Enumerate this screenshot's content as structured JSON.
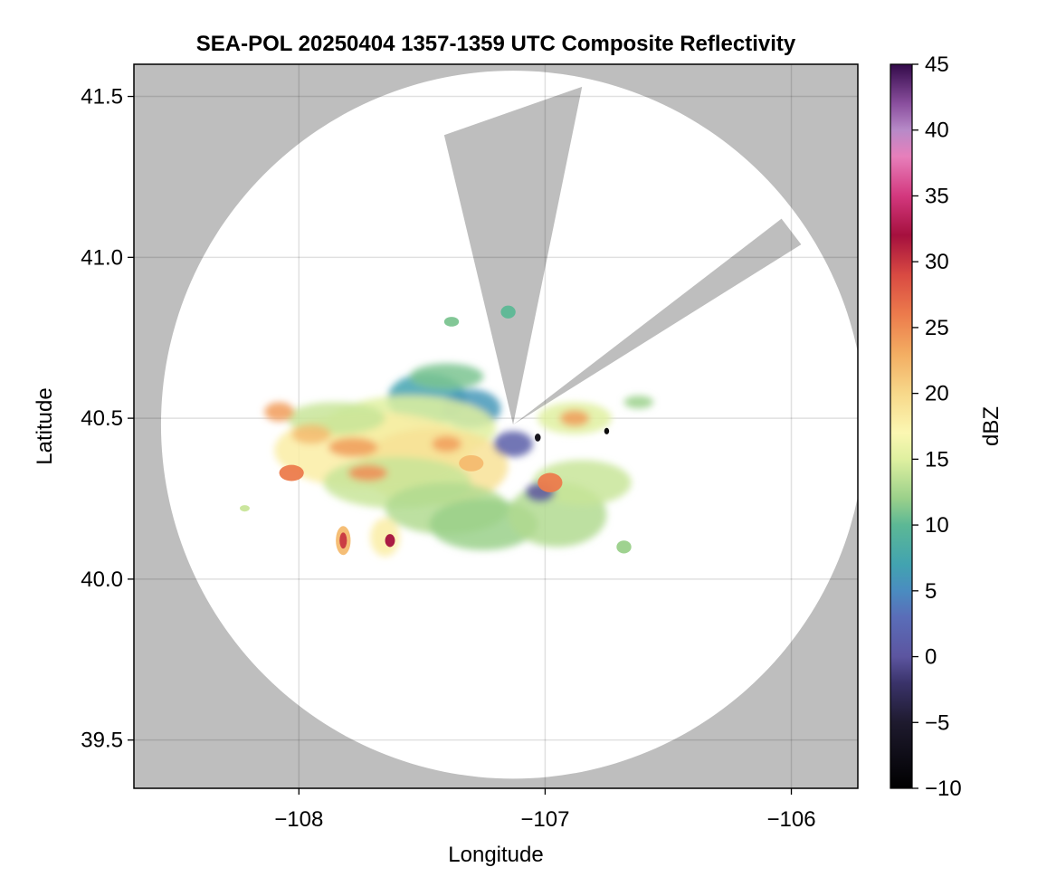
{
  "chart_data": {
    "type": "heatmap",
    "title": "SEA-POL 20250404 1357-1359 UTC Composite Reflectivity",
    "xlabel": "Longitude",
    "ylabel": "Latitude",
    "xlim": [
      -108.67,
      -105.73
    ],
    "ylim": [
      39.35,
      41.6
    ],
    "x_ticks": [
      -108,
      -107,
      -106
    ],
    "x_tick_labels": [
      "−108",
      "−107",
      "−106"
    ],
    "y_ticks": [
      39.5,
      40.0,
      40.5,
      41.0,
      41.5
    ],
    "y_tick_labels": [
      "39.5",
      "40.0",
      "40.5",
      "41.0",
      "41.5"
    ],
    "grid": true,
    "background_color": "#bebebe",
    "coverage_color": "#ffffff",
    "radar_site": {
      "lon": -107.13,
      "lat": 40.48
    },
    "radar_range_deg": {
      "lon": 1.43,
      "lat": 1.1
    },
    "blocked_sectors": [
      {
        "lon_a": -106.85,
        "lat_a": 41.53,
        "lon_b": -107.41,
        "lat_b": 41.38
      },
      {
        "lon_a": -106.04,
        "lat_a": 41.12,
        "lon_b": -105.96,
        "lat_b": 41.04
      }
    ],
    "colorbar": {
      "label": "dBZ",
      "min": -10,
      "max": 45,
      "ticks": [
        -10,
        -5,
        0,
        5,
        10,
        15,
        20,
        25,
        30,
        35,
        40,
        45
      ],
      "tick_labels": [
        "−10",
        "−5",
        "0",
        "5",
        "10",
        "15",
        "20",
        "25",
        "30",
        "35",
        "40",
        "45"
      ],
      "colormap_stops": [
        {
          "value": -10,
          "color": "#000000"
        },
        {
          "value": -5,
          "color": "#1e1a2e"
        },
        {
          "value": -2,
          "color": "#3a336a"
        },
        {
          "value": 0,
          "color": "#5c55a0"
        },
        {
          "value": 3,
          "color": "#5a6db8"
        },
        {
          "value": 5,
          "color": "#4a8cc0"
        },
        {
          "value": 7,
          "color": "#42a3b0"
        },
        {
          "value": 10,
          "color": "#5cb895"
        },
        {
          "value": 12,
          "color": "#9ad08a"
        },
        {
          "value": 15,
          "color": "#dff0a0"
        },
        {
          "value": 17,
          "color": "#fbf7b2"
        },
        {
          "value": 20,
          "color": "#f7d88a"
        },
        {
          "value": 23,
          "color": "#f3ad62"
        },
        {
          "value": 26,
          "color": "#ec7b4c"
        },
        {
          "value": 29,
          "color": "#d94a42"
        },
        {
          "value": 32,
          "color": "#a5103e"
        },
        {
          "value": 35,
          "color": "#d3387e"
        },
        {
          "value": 38,
          "color": "#e77fbb"
        },
        {
          "value": 40,
          "color": "#b78ac8"
        },
        {
          "value": 42,
          "color": "#8a4f9e"
        },
        {
          "value": 45,
          "color": "#330a4a"
        }
      ]
    },
    "echo_cells": [
      {
        "lon": -107.48,
        "lat": 40.56,
        "dlon": 0.16,
        "dlat": 0.08,
        "dbz": 7
      },
      {
        "lon": -107.3,
        "lat": 40.53,
        "dlon": 0.12,
        "dlat": 0.06,
        "dbz": 6
      },
      {
        "lon": -107.55,
        "lat": 40.47,
        "dlon": 0.35,
        "dlat": 0.1,
        "dbz": 15
      },
      {
        "lon": -107.7,
        "lat": 40.4,
        "dlon": 0.4,
        "dlat": 0.12,
        "dbz": 18
      },
      {
        "lon": -107.45,
        "lat": 40.35,
        "dlon": 0.3,
        "dlat": 0.12,
        "dbz": 19
      },
      {
        "lon": -107.6,
        "lat": 40.3,
        "dlon": 0.3,
        "dlat": 0.08,
        "dbz": 14
      },
      {
        "lon": -107.4,
        "lat": 40.22,
        "dlon": 0.25,
        "dlat": 0.08,
        "dbz": 13
      },
      {
        "lon": -107.25,
        "lat": 40.17,
        "dlon": 0.22,
        "dlat": 0.08,
        "dbz": 12
      },
      {
        "lon": -106.95,
        "lat": 40.2,
        "dlon": 0.2,
        "dlat": 0.1,
        "dbz": 13
      },
      {
        "lon": -106.85,
        "lat": 40.3,
        "dlon": 0.2,
        "dlat": 0.07,
        "dbz": 14
      },
      {
        "lon": -106.88,
        "lat": 40.5,
        "dlon": 0.15,
        "dlat": 0.05,
        "dbz": 15
      },
      {
        "lon": -107.85,
        "lat": 40.5,
        "dlon": 0.2,
        "dlat": 0.05,
        "dbz": 14
      },
      {
        "lon": -107.4,
        "lat": 40.63,
        "dlon": 0.15,
        "dlat": 0.04,
        "dbz": 11
      },
      {
        "lon": -107.13,
        "lat": 40.42,
        "dlon": 0.08,
        "dlat": 0.04,
        "dbz": 1
      },
      {
        "lon": -107.02,
        "lat": 40.27,
        "dlon": 0.06,
        "dlat": 0.03,
        "dbz": 0
      },
      {
        "lon": -108.08,
        "lat": 40.52,
        "dlon": 0.06,
        "dlat": 0.03,
        "dbz": 24
      },
      {
        "lon": -107.95,
        "lat": 40.45,
        "dlon": 0.08,
        "dlat": 0.03,
        "dbz": 22
      },
      {
        "lon": -107.78,
        "lat": 40.41,
        "dlon": 0.1,
        "dlat": 0.03,
        "dbz": 24
      },
      {
        "lon": -107.72,
        "lat": 40.33,
        "dlon": 0.08,
        "dlat": 0.025,
        "dbz": 25
      },
      {
        "lon": -108.03,
        "lat": 40.33,
        "dlon": 0.05,
        "dlat": 0.025,
        "dbz": 26
      },
      {
        "lon": -107.4,
        "lat": 40.42,
        "dlon": 0.06,
        "dlat": 0.025,
        "dbz": 24
      },
      {
        "lon": -107.3,
        "lat": 40.36,
        "dlon": 0.05,
        "dlat": 0.025,
        "dbz": 22
      },
      {
        "lon": -106.98,
        "lat": 40.3,
        "dlon": 0.05,
        "dlat": 0.03,
        "dbz": 26
      },
      {
        "lon": -106.88,
        "lat": 40.5,
        "dlon": 0.06,
        "dlat": 0.025,
        "dbz": 24
      },
      {
        "lon": -107.82,
        "lat": 40.12,
        "dlon": 0.03,
        "dlat": 0.045,
        "dbz": 22
      },
      {
        "lon": -107.65,
        "lat": 40.13,
        "dlon": 0.06,
        "dlat": 0.06,
        "dbz": 18
      },
      {
        "lon": -107.82,
        "lat": 40.12,
        "dlon": 0.015,
        "dlat": 0.025,
        "dbz": 30
      },
      {
        "lon": -107.63,
        "lat": 40.12,
        "dlon": 0.02,
        "dlat": 0.02,
        "dbz": 32
      },
      {
        "lon": -107.15,
        "lat": 40.83,
        "dlon": 0.03,
        "dlat": 0.02,
        "dbz": 10
      },
      {
        "lon": -107.38,
        "lat": 40.8,
        "dlon": 0.03,
        "dlat": 0.015,
        "dbz": 11
      },
      {
        "lon": -106.62,
        "lat": 40.55,
        "dlon": 0.06,
        "dlat": 0.02,
        "dbz": 12
      },
      {
        "lon": -106.68,
        "lat": 40.1,
        "dlon": 0.03,
        "dlat": 0.02,
        "dbz": 12
      },
      {
        "lon": -108.22,
        "lat": 40.22,
        "dlon": 0.02,
        "dlat": 0.01,
        "dbz": 14
      },
      {
        "lon": -106.75,
        "lat": 40.46,
        "dlon": 0.01,
        "dlat": 0.01,
        "dbz": -10
      },
      {
        "lon": -107.03,
        "lat": 40.44,
        "dlon": 0.012,
        "dlat": 0.012,
        "dbz": -8
      }
    ]
  }
}
